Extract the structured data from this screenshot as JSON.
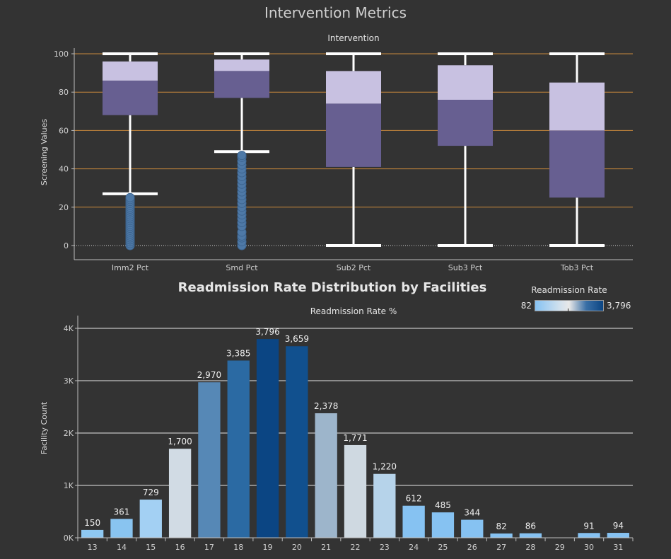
{
  "title": "Intervention Metrics",
  "chart_data": [
    {
      "type": "box",
      "title": "Intervention",
      "xlabel": "",
      "ylabel": "Screening Values",
      "ylim": [
        0,
        100
      ],
      "yticks": [
        "0",
        "20",
        "40",
        "60",
        "80",
        "100"
      ],
      "grid": true,
      "categories": [
        "Imm2 Pct",
        "Smd Pct",
        "Sub2 Pct",
        "Sub3 Pct",
        "Tob3 Pct"
      ],
      "boxes": [
        {
          "whisker_low": 27,
          "q1": 68,
          "median": 86,
          "q3": 96,
          "whisker_high": 100,
          "outliers": [
            0,
            1,
            2,
            3,
            4,
            5,
            6,
            7,
            8,
            9,
            10,
            11,
            12,
            13,
            14,
            15,
            16,
            17,
            18,
            19,
            20,
            21,
            22,
            23,
            24,
            25
          ]
        },
        {
          "whisker_low": 49,
          "q1": 77,
          "median": 91,
          "q3": 97,
          "whisker_high": 100,
          "outliers": [
            0,
            2,
            4,
            5,
            7,
            10,
            12,
            14,
            16,
            18,
            20,
            22,
            24,
            26,
            28,
            30,
            32,
            34,
            36,
            38,
            40,
            42,
            44,
            46,
            47
          ]
        },
        {
          "whisker_low": 0,
          "q1": 41,
          "median": 74,
          "q3": 91,
          "whisker_high": 100,
          "outliers": []
        },
        {
          "whisker_low": 0,
          "q1": 52,
          "median": 76,
          "q3": 94,
          "whisker_high": 100,
          "outliers": []
        },
        {
          "whisker_low": 0,
          "q1": 25,
          "median": 60,
          "q3": 85,
          "whisker_high": 100,
          "outliers": []
        }
      ],
      "colors": {
        "lower_box": "#675f91",
        "upper_box": "#c8c1e1",
        "outlier": "#4e79a7",
        "gridline": "#c98a3c",
        "whisker": "#ffffff"
      }
    },
    {
      "type": "bar",
      "title": "Readmission Rate Distribution by Facilities",
      "xlabel": "Readmission Rate %",
      "ylabel": "Facility Count",
      "ylim": [
        0,
        4000
      ],
      "yticks": [
        "0K",
        "1K",
        "2K",
        "3K",
        "4K"
      ],
      "grid": true,
      "categories": [
        "13",
        "14",
        "15",
        "16",
        "17",
        "18",
        "19",
        "20",
        "21",
        "22",
        "23",
        "24",
        "25",
        "26",
        "27",
        "28",
        "29",
        "30",
        "31"
      ],
      "values": [
        150,
        361,
        729,
        1700,
        2970,
        3385,
        3796,
        3659,
        2378,
        1771,
        1220,
        612,
        485,
        344,
        82,
        86,
        null,
        91,
        94
      ],
      "labels": [
        "150",
        "361",
        "729",
        "1,700",
        "2,970",
        "3,385",
        "3,796",
        "3,659",
        "2,378",
        "1,771",
        "1,220",
        "612",
        "485",
        "344",
        "82",
        "86",
        "",
        "91",
        "94"
      ],
      "colors": [
        "#8ec8f2",
        "#89c4f0",
        "#a3d0f3",
        "#d1dbe4",
        "#5688b6",
        "#2b6aa3",
        "#0b4583",
        "#11508e",
        "#9db5cb",
        "#cfd9e1",
        "#b6d3ea",
        "#86c2f2",
        "#86c2f2",
        "#86c2f2",
        "#86c2f2",
        "#86c2f2",
        "#86c2f2",
        "#86c2f2",
        "#86c2f2"
      ],
      "legend": {
        "title": "Readmission Rate",
        "min_label": "82",
        "max_label": "3,796",
        "position": "top-right"
      }
    }
  ]
}
